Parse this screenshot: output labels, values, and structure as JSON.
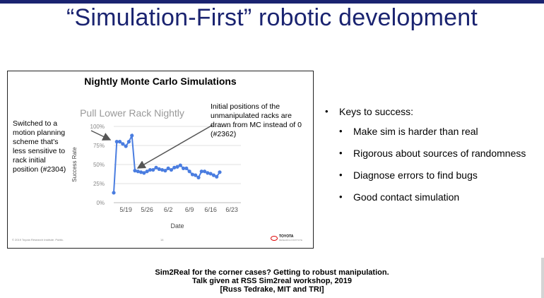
{
  "slide": {
    "title": "“Simulation-First” robotic development",
    "bullets": {
      "main": "Keys to success:",
      "sub": [
        "Make sim is harder than real",
        "Rigorous about sources of randomness",
        "Diagnose errors to find bugs",
        "Good contact simulation"
      ]
    },
    "caption": [
      "Sim2Real for the corner cases? Getting to robust manipulation.",
      "Talk given at RSS Sim2real workshop, 2019",
      "[Russ Tedrake, MIT and TRI]"
    ],
    "colors": {
      "title": "#1a2370",
      "line": "#4a7de0",
      "accent": "#d00000"
    }
  },
  "embedded_slide": {
    "title": "Nightly Monte Carlo Simulations",
    "footer_left": "© 2019 Toyota Research Institute. Public.",
    "page_number": "14",
    "logo_text": "TOYOTA",
    "logo_sub": "RESEARCH INSTITUTE",
    "annotations": {
      "left": [
        "Switched to a",
        "motion planning",
        "scheme that's",
        "less sensitive to",
        "rack initial",
        "position (#2304)"
      ],
      "right": [
        "Initial positions of the",
        "unmanipulated racks are",
        "drawn from MC instead of 0",
        "(#2362)"
      ]
    }
  },
  "chart_data": {
    "type": "line",
    "title": "Pull Lower Rack Nightly",
    "xlabel": "Date",
    "ylabel": "Success Rate",
    "ylim": [
      0,
      100
    ],
    "yticks": [
      "0%",
      "25%",
      "50%",
      "75%",
      "100%"
    ],
    "xticks": [
      "5/19",
      "5/26",
      "6/2",
      "6/9",
      "6/16",
      "6/23"
    ],
    "grid": true,
    "series": [
      {
        "x": [
          "5/15",
          "5/16",
          "5/17",
          "5/18",
          "5/19",
          "5/20",
          "5/21",
          "5/22",
          "5/23",
          "5/24",
          "5/25",
          "5/26",
          "5/27",
          "5/28",
          "5/29",
          "5/30",
          "5/31",
          "6/1",
          "6/2",
          "6/3",
          "6/4",
          "6/5",
          "6/6",
          "6/7",
          "6/8",
          "6/9",
          "6/10",
          "6/11",
          "6/12",
          "6/13",
          "6/14",
          "6/15",
          "6/16",
          "6/17",
          "6/18",
          "6/19"
        ],
        "values": [
          13,
          80,
          80,
          77,
          74,
          80,
          88,
          42,
          41,
          40,
          39,
          41,
          43,
          43,
          46,
          44,
          43,
          42,
          45,
          43,
          46,
          47,
          49,
          45,
          45,
          41,
          37,
          36,
          33,
          41,
          41,
          39,
          38,
          36,
          34,
          40
        ]
      }
    ]
  }
}
